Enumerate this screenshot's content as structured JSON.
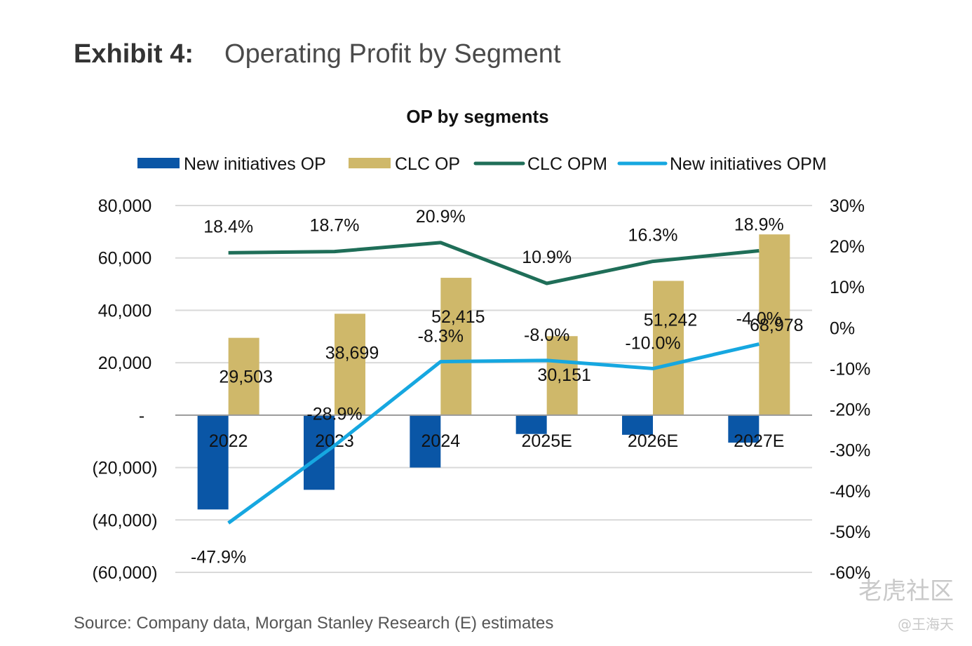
{
  "header": {
    "exhibit_label": "Exhibit 4:",
    "exhibit_title": "Operating Profit by Segment"
  },
  "footer": {
    "source": "Source: Company data, Morgan Stanley Research (E) estimates"
  },
  "watermark": {
    "brand": "老虎社区",
    "user": "@王海天"
  },
  "chart_data": {
    "type": "bar",
    "title": "OP by segments",
    "categories": [
      "2022",
      "2023",
      "2024",
      "2025E",
      "2026E",
      "2027E"
    ],
    "series": [
      {
        "name": "New initiatives OP",
        "kind": "bar",
        "axis": "left",
        "color": "#0a56a6",
        "values": [
          -36000,
          -28500,
          -20000,
          -7200,
          -7500,
          -10500
        ]
      },
      {
        "name": "CLC OP",
        "kind": "bar",
        "axis": "left",
        "color": "#cfb86a",
        "values": [
          29503,
          38699,
          52415,
          30151,
          51242,
          68978
        ],
        "labels": [
          "29,503",
          "38,699",
          "52,415",
          "30,151",
          "51,242",
          "68,978"
        ]
      },
      {
        "name": "CLC OPM",
        "kind": "line",
        "axis": "right",
        "color": "#1f6e58",
        "values": [
          18.4,
          18.7,
          20.9,
          10.9,
          16.3,
          18.9
        ],
        "labels": [
          "18.4%",
          "18.7%",
          "20.9%",
          "10.9%",
          "16.3%",
          "18.9%"
        ]
      },
      {
        "name": "New initiatives OPM",
        "kind": "line",
        "axis": "right",
        "color": "#16a7e0",
        "values": [
          -47.9,
          -28.9,
          -8.3,
          -8.0,
          -10.0,
          -4.0
        ],
        "labels": [
          "-47.9%",
          "-28.9%",
          "-8.3%",
          "-8.0%",
          "-10.0%",
          "-4.0%"
        ]
      }
    ],
    "y_left": {
      "range": [
        -60000,
        80000
      ],
      "ticks": [
        80000,
        60000,
        40000,
        20000,
        0,
        -20000,
        -40000,
        -60000
      ],
      "tick_labels": [
        "80,000",
        "60,000",
        "40,000",
        "20,000",
        "-",
        "(20,000)",
        "(40,000)",
        "(60,000)"
      ]
    },
    "y_right": {
      "range": [
        -60,
        30
      ],
      "ticks": [
        30,
        20,
        10,
        0,
        -10,
        -20,
        -30,
        -40,
        -50,
        -60
      ],
      "tick_labels": [
        "30%",
        "20%",
        "10%",
        "0%",
        "-10%",
        "-20%",
        "-30%",
        "-40%",
        "-50%",
        "-60%"
      ]
    },
    "grid": true,
    "legend_position": "top"
  }
}
